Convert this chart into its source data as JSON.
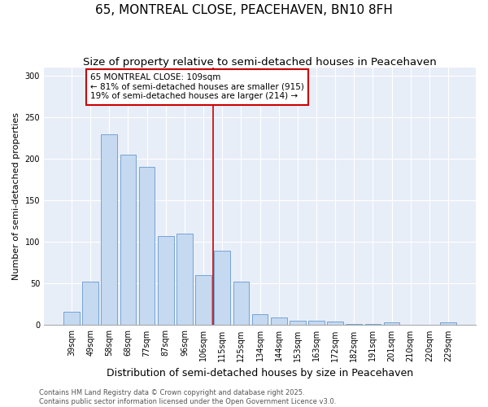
{
  "title": "65, MONTREAL CLOSE, PEACEHAVEN, BN10 8FH",
  "subtitle": "Size of property relative to semi-detached houses in Peacehaven",
  "xlabel": "Distribution of semi-detached houses by size in Peacehaven",
  "ylabel": "Number of semi-detached properties",
  "categories": [
    "39sqm",
    "49sqm",
    "58sqm",
    "68sqm",
    "77sqm",
    "87sqm",
    "96sqm",
    "106sqm",
    "115sqm",
    "125sqm",
    "134sqm",
    "144sqm",
    "153sqm",
    "163sqm",
    "172sqm",
    "182sqm",
    "191sqm",
    "201sqm",
    "210sqm",
    "220sqm",
    "229sqm"
  ],
  "values": [
    16,
    52,
    230,
    205,
    190,
    107,
    110,
    60,
    90,
    52,
    13,
    9,
    5,
    5,
    4,
    1,
    1,
    3,
    0,
    0,
    3
  ],
  "bar_color": "#c5d9f1",
  "bar_edge_color": "#6699cc",
  "highlight_color": "#cc0000",
  "annotation_text": "65 MONTREAL CLOSE: 109sqm\n← 81% of semi-detached houses are smaller (915)\n19% of semi-detached houses are larger (214) →",
  "annotation_box_color": "#ffffff",
  "annotation_box_edge": "#cc0000",
  "ylim": [
    0,
    310
  ],
  "yticks": [
    0,
    50,
    100,
    150,
    200,
    250,
    300
  ],
  "background_color": "#e8eef8",
  "footer_text": "Contains HM Land Registry data © Crown copyright and database right 2025.\nContains public sector information licensed under the Open Government Licence v3.0.",
  "title_fontsize": 11,
  "subtitle_fontsize": 9.5,
  "xlabel_fontsize": 9,
  "ylabel_fontsize": 8,
  "tick_fontsize": 7,
  "annotation_fontsize": 7.5,
  "footer_fontsize": 6
}
